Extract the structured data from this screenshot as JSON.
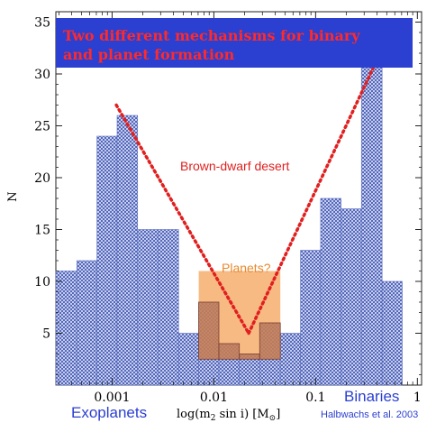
{
  "chart_data": {
    "type": "bar",
    "title": "Two different mechanisms for binary and planet formation",
    "title_lines": [
      "Two different mechanisms for binary",
      "and planet formation"
    ],
    "ylabel": "N",
    "xlabel": "log(m₂ sin i) [M⊙]",
    "xlabel_parts": {
      "main": "log(m",
      "sub": "2",
      "rest": " sin i)  [M",
      "sub2": "⊙",
      "end": "]"
    },
    "xscale": "log",
    "xlim": [
      0.00028,
      1.1
    ],
    "ylim": [
      0,
      36
    ],
    "yticks": [
      "5",
      "10",
      "15",
      "20",
      "25",
      "30",
      "35"
    ],
    "ytick_values": [
      5,
      10,
      15,
      20,
      25,
      30,
      35
    ],
    "xticks": [
      "0.001",
      "0.01",
      "0.1",
      "1"
    ],
    "xtick_values": [
      0.001,
      0.01,
      0.1,
      1
    ],
    "bar_color": "#5b6fc0",
    "highlight_color": "#f5a35a",
    "line_color": "#e02020",
    "title_bg": "#2b3fd0",
    "histogram": [
      {
        "left": 0.00028,
        "right": 0.00045,
        "value": 11
      },
      {
        "left": 0.00045,
        "right": 0.00071,
        "value": 12
      },
      {
        "left": 0.00071,
        "right": 0.00112,
        "value": 24
      },
      {
        "left": 0.00112,
        "right": 0.00178,
        "value": 26
      },
      {
        "left": 0.00178,
        "right": 0.00282,
        "value": 15
      },
      {
        "left": 0.00282,
        "right": 0.0045,
        "value": 15
      },
      {
        "left": 0.0045,
        "right": 0.0071,
        "value": 5
      },
      {
        "left": 0.0071,
        "right": 0.0112,
        "value": 8
      },
      {
        "left": 0.0112,
        "right": 0.0178,
        "value": 4
      },
      {
        "left": 0.0178,
        "right": 0.0282,
        "value": 3
      },
      {
        "left": 0.0282,
        "right": 0.045,
        "value": 6
      },
      {
        "left": 0.045,
        "right": 0.071,
        "value": 5
      },
      {
        "left": 0.071,
        "right": 0.112,
        "value": 13
      },
      {
        "left": 0.112,
        "right": 0.178,
        "value": 18
      },
      {
        "left": 0.178,
        "right": 0.282,
        "value": 17
      },
      {
        "left": 0.282,
        "right": 0.45,
        "value": 34
      },
      {
        "left": 0.45,
        "right": 0.71,
        "value": 10
      }
    ],
    "planets_region": {
      "x": [
        0.0071,
        0.045
      ],
      "y": [
        2.5,
        11
      ]
    },
    "trend_lines": [
      {
        "x": [
          0.0011,
          0.022
        ],
        "y": [
          27,
          5
        ]
      },
      {
        "x": [
          0.022,
          0.48
        ],
        "y": [
          5,
          33
        ]
      }
    ],
    "annotations": {
      "brown_dwarf_desert": "Brown-dwarf desert",
      "planets": "Planets?",
      "exoplanets": "Exoplanets",
      "binaries": "Binaries",
      "citation": "Halbwachs et al. 2003"
    }
  }
}
